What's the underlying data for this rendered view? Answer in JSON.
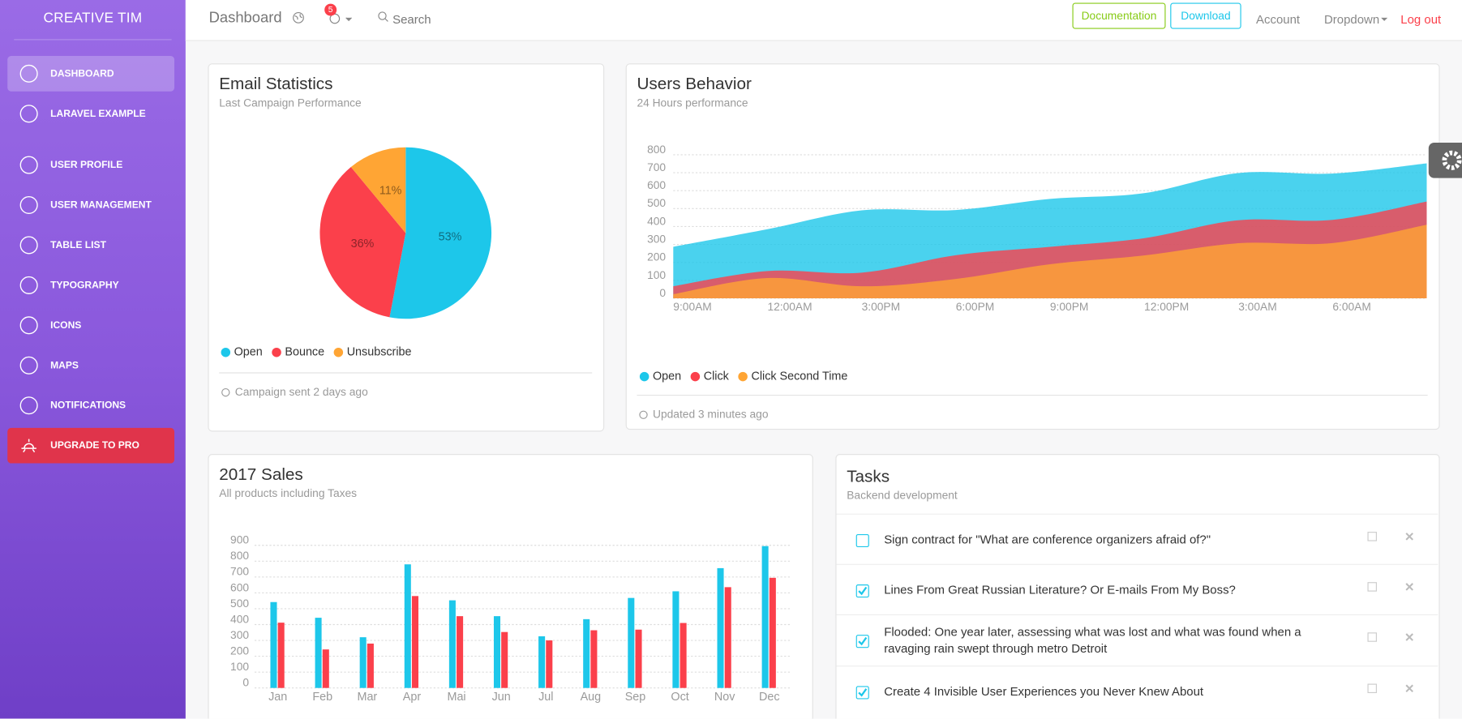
{
  "sidebar": {
    "brand": "CREATIVE TIM",
    "items": [
      "DASHBOARD",
      "LARAVEL EXAMPLE",
      "USER PROFILE",
      "USER MANAGEMENT",
      "TABLE LIST",
      "TYPOGRAPHY",
      "ICONS",
      "MAPS",
      "NOTIFICATIONS"
    ],
    "active": 0,
    "upgrade": "UPGRADE TO PRO"
  },
  "navbar": {
    "title": "Dashboard",
    "badge": 5,
    "search": "Search",
    "buttons": [
      "Documentation",
      "Download"
    ],
    "links": [
      "Account",
      "Dropdown",
      "Log out"
    ]
  },
  "chart_data": [
    {
      "type": "pie",
      "title": "Email Statistics",
      "subtitle": "Last Campaign Performance",
      "categories": [
        "Open",
        "Bounce",
        "Unsubscribe"
      ],
      "values": [
        53,
        36,
        11
      ],
      "value_labels": [
        "53%",
        "36%",
        "11%"
      ],
      "colors": [
        "#1dc7ea",
        "#fb404b",
        "#ffa534"
      ],
      "footer": "Campaign sent 2 days ago"
    },
    {
      "type": "area",
      "title": "Users Behavior",
      "subtitle": "24 Hours performance",
      "categories": [
        "9:00AM",
        "12:00AM",
        "3:00PM",
        "6:00PM",
        "9:00PM",
        "12:00PM",
        "3:00AM",
        "6:00AM",
        null
      ],
      "series": [
        {
          "name": "Open",
          "color": "#1dc7ea",
          "values": [
            287,
            385,
            490,
            492,
            554,
            586,
            698,
            695,
            752
          ]
        },
        {
          "name": "Click",
          "color": "#fb404b",
          "values": [
            67,
            152,
            143,
            240,
            287,
            335,
            435,
            437,
            539
          ]
        },
        {
          "name": "Click Second Time",
          "color": "#ffa534",
          "values": [
            23,
            113,
            67,
            108,
            190,
            239,
            307,
            308,
            410
          ]
        }
      ],
      "ylim": [
        0,
        800
      ],
      "yticks": [
        0,
        100,
        200,
        300,
        400,
        500,
        600,
        700,
        800
      ],
      "grid": true,
      "footer": "Updated 3 minutes ago"
    },
    {
      "type": "bar",
      "title": "2017 Sales",
      "subtitle": "All products including Taxes",
      "categories": [
        "Jan",
        "Feb",
        "Mar",
        "Apr",
        "Mai",
        "Jun",
        "Jul",
        "Aug",
        "Sep",
        "Oct",
        "Nov",
        "Dec"
      ],
      "series": [
        {
          "color": "#1dc7ea",
          "values": [
            542,
            443,
            320,
            780,
            553,
            453,
            326,
            434,
            568,
            610,
            756,
            895
          ]
        },
        {
          "color": "#fb404b",
          "values": [
            412,
            243,
            280,
            580,
            453,
            353,
            300,
            364,
            368,
            410,
            636,
            695
          ]
        }
      ],
      "ylim": [
        0,
        900
      ],
      "yticks": [
        0,
        100,
        200,
        300,
        400,
        500,
        600,
        700,
        800,
        900
      ],
      "grid": true
    }
  ],
  "tasks": {
    "title": "Tasks",
    "subtitle": "Backend development",
    "items": [
      {
        "text": "Sign contract for \"What are conference organizers afraid of?\"",
        "checked": false
      },
      {
        "text": "Lines From Great Russian Literature? Or E-mails From My Boss?",
        "checked": true
      },
      {
        "text": "Flooded: One year later, assessing what was lost and what was found when a ravaging rain swept through metro Detroit",
        "checked": true
      },
      {
        "text": "Create 4 Invisible User Experiences you Never Knew About",
        "checked": true
      }
    ]
  }
}
